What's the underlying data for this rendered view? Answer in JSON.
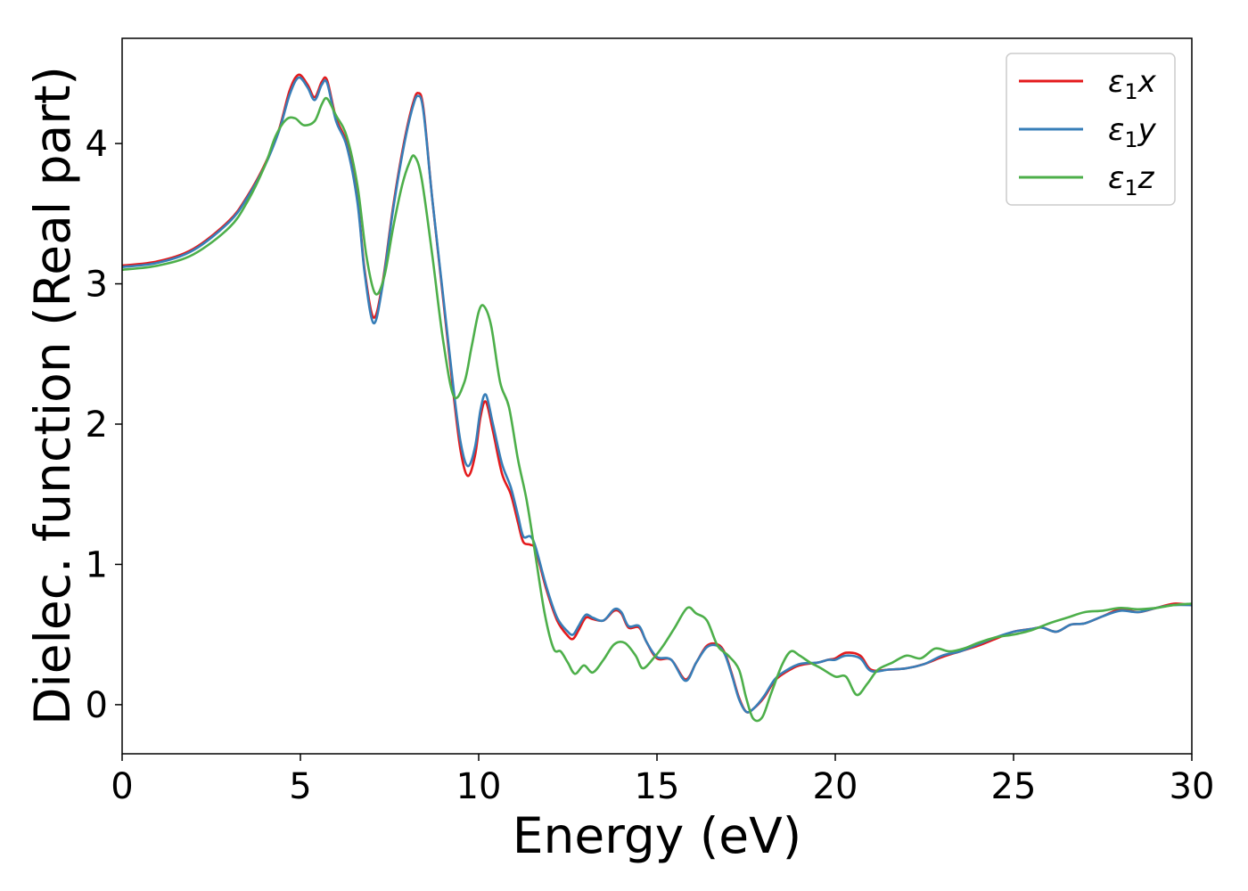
{
  "chart_data": {
    "type": "line",
    "title": "",
    "xlabel": "Energy (eV)",
    "ylabel": "Dielec. function (Real part)",
    "xlim": [
      0,
      30
    ],
    "ylim": [
      -0.35,
      4.75
    ],
    "xticks": [
      0,
      5,
      10,
      15,
      20,
      25,
      30
    ],
    "yticks": [
      0,
      1,
      2,
      3,
      4
    ],
    "grid": false,
    "legend_position": "top-right",
    "series": [
      {
        "name": "ε1x",
        "legend_main": "ε",
        "legend_sub": "1",
        "legend_suffix": "x",
        "color": "#e41a1c",
        "points": [
          [
            0,
            3.13
          ],
          [
            1,
            3.16
          ],
          [
            2,
            3.25
          ],
          [
            3,
            3.45
          ],
          [
            3.5,
            3.62
          ],
          [
            4,
            3.85
          ],
          [
            4.4,
            4.1
          ],
          [
            4.7,
            4.38
          ],
          [
            4.95,
            4.49
          ],
          [
            5.2,
            4.42
          ],
          [
            5.4,
            4.33
          ],
          [
            5.6,
            4.44
          ],
          [
            5.75,
            4.45
          ],
          [
            6.0,
            4.18
          ],
          [
            6.3,
            4.0
          ],
          [
            6.6,
            3.6
          ],
          [
            6.8,
            3.1
          ],
          [
            7.05,
            2.76
          ],
          [
            7.3,
            3.0
          ],
          [
            7.6,
            3.55
          ],
          [
            7.9,
            4.0
          ],
          [
            8.15,
            4.28
          ],
          [
            8.3,
            4.36
          ],
          [
            8.45,
            4.25
          ],
          [
            8.7,
            3.6
          ],
          [
            9.0,
            2.9
          ],
          [
            9.3,
            2.2
          ],
          [
            9.5,
            1.8
          ],
          [
            9.7,
            1.63
          ],
          [
            9.9,
            1.78
          ],
          [
            10.05,
            2.05
          ],
          [
            10.2,
            2.16
          ],
          [
            10.4,
            1.95
          ],
          [
            10.65,
            1.65
          ],
          [
            10.9,
            1.5
          ],
          [
            11.1,
            1.3
          ],
          [
            11.25,
            1.16
          ],
          [
            11.45,
            1.14
          ],
          [
            11.6,
            1.1
          ],
          [
            11.9,
            0.82
          ],
          [
            12.2,
            0.6
          ],
          [
            12.5,
            0.49
          ],
          [
            12.65,
            0.47
          ],
          [
            12.8,
            0.53
          ],
          [
            13.0,
            0.62
          ],
          [
            13.2,
            0.61
          ],
          [
            13.5,
            0.6
          ],
          [
            13.8,
            0.67
          ],
          [
            14.0,
            0.65
          ],
          [
            14.2,
            0.55
          ],
          [
            14.5,
            0.55
          ],
          [
            14.7,
            0.45
          ],
          [
            15.0,
            0.33
          ],
          [
            15.4,
            0.32
          ],
          [
            15.8,
            0.18
          ],
          [
            16.1,
            0.3
          ],
          [
            16.4,
            0.42
          ],
          [
            16.7,
            0.43
          ],
          [
            16.9,
            0.37
          ],
          [
            17.1,
            0.22
          ],
          [
            17.3,
            0.05
          ],
          [
            17.5,
            -0.05
          ],
          [
            17.7,
            -0.03
          ],
          [
            18.0,
            0.05
          ],
          [
            18.3,
            0.17
          ],
          [
            18.6,
            0.23
          ],
          [
            19.0,
            0.28
          ],
          [
            19.5,
            0.3
          ],
          [
            19.8,
            0.32
          ],
          [
            20.0,
            0.33
          ],
          [
            20.3,
            0.37
          ],
          [
            20.7,
            0.35
          ],
          [
            21.0,
            0.25
          ],
          [
            21.5,
            0.25
          ],
          [
            22.0,
            0.26
          ],
          [
            22.5,
            0.29
          ],
          [
            23.0,
            0.34
          ],
          [
            23.5,
            0.38
          ],
          [
            24.0,
            0.42
          ],
          [
            24.5,
            0.47
          ],
          [
            25.0,
            0.52
          ],
          [
            25.5,
            0.54
          ],
          [
            25.8,
            0.55
          ],
          [
            26.2,
            0.52
          ],
          [
            26.6,
            0.57
          ],
          [
            27.0,
            0.58
          ],
          [
            27.5,
            0.63
          ],
          [
            28.0,
            0.68
          ],
          [
            28.5,
            0.66
          ],
          [
            29.0,
            0.69
          ],
          [
            29.5,
            0.72
          ],
          [
            30.0,
            0.71
          ]
        ]
      },
      {
        "name": "ε1y",
        "legend_main": "ε",
        "legend_sub": "1",
        "legend_suffix": "y",
        "color": "#377eb8",
        "points": [
          [
            0,
            3.12
          ],
          [
            1,
            3.15
          ],
          [
            2,
            3.24
          ],
          [
            3,
            3.44
          ],
          [
            3.5,
            3.61
          ],
          [
            4,
            3.84
          ],
          [
            4.4,
            4.09
          ],
          [
            4.7,
            4.35
          ],
          [
            4.95,
            4.47
          ],
          [
            5.2,
            4.4
          ],
          [
            5.4,
            4.31
          ],
          [
            5.6,
            4.42
          ],
          [
            5.75,
            4.43
          ],
          [
            6.0,
            4.16
          ],
          [
            6.3,
            3.98
          ],
          [
            6.6,
            3.58
          ],
          [
            6.8,
            3.08
          ],
          [
            7.05,
            2.72
          ],
          [
            7.3,
            2.98
          ],
          [
            7.6,
            3.53
          ],
          [
            7.9,
            3.98
          ],
          [
            8.15,
            4.26
          ],
          [
            8.3,
            4.34
          ],
          [
            8.45,
            4.23
          ],
          [
            8.7,
            3.6
          ],
          [
            9.0,
            2.92
          ],
          [
            9.3,
            2.24
          ],
          [
            9.5,
            1.86
          ],
          [
            9.7,
            1.7
          ],
          [
            9.9,
            1.84
          ],
          [
            10.05,
            2.1
          ],
          [
            10.2,
            2.21
          ],
          [
            10.4,
            2.0
          ],
          [
            10.65,
            1.72
          ],
          [
            10.9,
            1.55
          ],
          [
            11.1,
            1.35
          ],
          [
            11.25,
            1.2
          ],
          [
            11.45,
            1.2
          ],
          [
            11.6,
            1.12
          ],
          [
            11.9,
            0.84
          ],
          [
            12.2,
            0.62
          ],
          [
            12.5,
            0.52
          ],
          [
            12.65,
            0.5
          ],
          [
            12.8,
            0.56
          ],
          [
            13.0,
            0.64
          ],
          [
            13.2,
            0.62
          ],
          [
            13.5,
            0.6
          ],
          [
            13.8,
            0.68
          ],
          [
            14.0,
            0.66
          ],
          [
            14.2,
            0.56
          ],
          [
            14.5,
            0.56
          ],
          [
            14.7,
            0.45
          ],
          [
            15.0,
            0.34
          ],
          [
            15.4,
            0.32
          ],
          [
            15.8,
            0.17
          ],
          [
            16.1,
            0.3
          ],
          [
            16.4,
            0.41
          ],
          [
            16.7,
            0.42
          ],
          [
            16.9,
            0.36
          ],
          [
            17.1,
            0.21
          ],
          [
            17.3,
            0.04
          ],
          [
            17.5,
            -0.05
          ],
          [
            17.7,
            -0.03
          ],
          [
            18.0,
            0.06
          ],
          [
            18.3,
            0.18
          ],
          [
            18.6,
            0.24
          ],
          [
            19.0,
            0.29
          ],
          [
            19.5,
            0.3
          ],
          [
            19.8,
            0.32
          ],
          [
            20.0,
            0.32
          ],
          [
            20.3,
            0.35
          ],
          [
            20.7,
            0.33
          ],
          [
            21.0,
            0.24
          ],
          [
            21.5,
            0.25
          ],
          [
            22.0,
            0.26
          ],
          [
            22.5,
            0.29
          ],
          [
            23.0,
            0.35
          ],
          [
            23.5,
            0.38
          ],
          [
            24.0,
            0.43
          ],
          [
            24.5,
            0.48
          ],
          [
            25.0,
            0.52
          ],
          [
            25.5,
            0.54
          ],
          [
            25.8,
            0.55
          ],
          [
            26.2,
            0.52
          ],
          [
            26.6,
            0.57
          ],
          [
            27.0,
            0.58
          ],
          [
            27.5,
            0.63
          ],
          [
            28.0,
            0.67
          ],
          [
            28.5,
            0.66
          ],
          [
            29.0,
            0.69
          ],
          [
            29.5,
            0.71
          ],
          [
            30.0,
            0.71
          ]
        ]
      },
      {
        "name": "ε1z",
        "legend_main": "ε",
        "legend_sub": "1",
        "legend_suffix": "z",
        "color": "#4daf4a",
        "points": [
          [
            0,
            3.1
          ],
          [
            1,
            3.13
          ],
          [
            2,
            3.21
          ],
          [
            3,
            3.4
          ],
          [
            3.5,
            3.58
          ],
          [
            4,
            3.84
          ],
          [
            4.3,
            4.05
          ],
          [
            4.6,
            4.17
          ],
          [
            4.85,
            4.18
          ],
          [
            5.1,
            4.13
          ],
          [
            5.4,
            4.16
          ],
          [
            5.6,
            4.28
          ],
          [
            5.75,
            4.32
          ],
          [
            6.0,
            4.2
          ],
          [
            6.3,
            4.05
          ],
          [
            6.6,
            3.7
          ],
          [
            6.85,
            3.2
          ],
          [
            7.1,
            2.93
          ],
          [
            7.35,
            3.05
          ],
          [
            7.6,
            3.4
          ],
          [
            7.85,
            3.7
          ],
          [
            8.05,
            3.86
          ],
          [
            8.2,
            3.91
          ],
          [
            8.4,
            3.75
          ],
          [
            8.7,
            3.2
          ],
          [
            9.0,
            2.6
          ],
          [
            9.3,
            2.2
          ],
          [
            9.6,
            2.3
          ],
          [
            9.8,
            2.55
          ],
          [
            10.0,
            2.8
          ],
          [
            10.15,
            2.84
          ],
          [
            10.35,
            2.7
          ],
          [
            10.6,
            2.3
          ],
          [
            10.85,
            2.12
          ],
          [
            11.1,
            1.75
          ],
          [
            11.35,
            1.45
          ],
          [
            11.6,
            1.05
          ],
          [
            11.85,
            0.65
          ],
          [
            12.1,
            0.4
          ],
          [
            12.3,
            0.38
          ],
          [
            12.5,
            0.3
          ],
          [
            12.7,
            0.22
          ],
          [
            12.95,
            0.28
          ],
          [
            13.2,
            0.23
          ],
          [
            13.5,
            0.32
          ],
          [
            13.8,
            0.43
          ],
          [
            14.1,
            0.44
          ],
          [
            14.4,
            0.35
          ],
          [
            14.6,
            0.26
          ],
          [
            14.9,
            0.33
          ],
          [
            15.2,
            0.43
          ],
          [
            15.5,
            0.55
          ],
          [
            15.85,
            0.69
          ],
          [
            16.1,
            0.65
          ],
          [
            16.4,
            0.6
          ],
          [
            16.7,
            0.42
          ],
          [
            17.0,
            0.35
          ],
          [
            17.3,
            0.25
          ],
          [
            17.5,
            0.05
          ],
          [
            17.7,
            -0.1
          ],
          [
            17.95,
            -0.09
          ],
          [
            18.2,
            0.08
          ],
          [
            18.5,
            0.28
          ],
          [
            18.75,
            0.38
          ],
          [
            19.0,
            0.35
          ],
          [
            19.3,
            0.3
          ],
          [
            19.6,
            0.26
          ],
          [
            20.0,
            0.2
          ],
          [
            20.3,
            0.2
          ],
          [
            20.6,
            0.07
          ],
          [
            20.9,
            0.15
          ],
          [
            21.2,
            0.25
          ],
          [
            21.6,
            0.3
          ],
          [
            22.0,
            0.35
          ],
          [
            22.4,
            0.33
          ],
          [
            22.8,
            0.4
          ],
          [
            23.2,
            0.38
          ],
          [
            23.6,
            0.4
          ],
          [
            24.0,
            0.44
          ],
          [
            24.5,
            0.48
          ],
          [
            25.0,
            0.5
          ],
          [
            25.5,
            0.53
          ],
          [
            26.0,
            0.58
          ],
          [
            26.5,
            0.62
          ],
          [
            27.0,
            0.66
          ],
          [
            27.5,
            0.67
          ],
          [
            28.0,
            0.69
          ],
          [
            28.5,
            0.68
          ],
          [
            29.0,
            0.69
          ],
          [
            29.5,
            0.71
          ],
          [
            30.0,
            0.72
          ]
        ]
      }
    ]
  }
}
